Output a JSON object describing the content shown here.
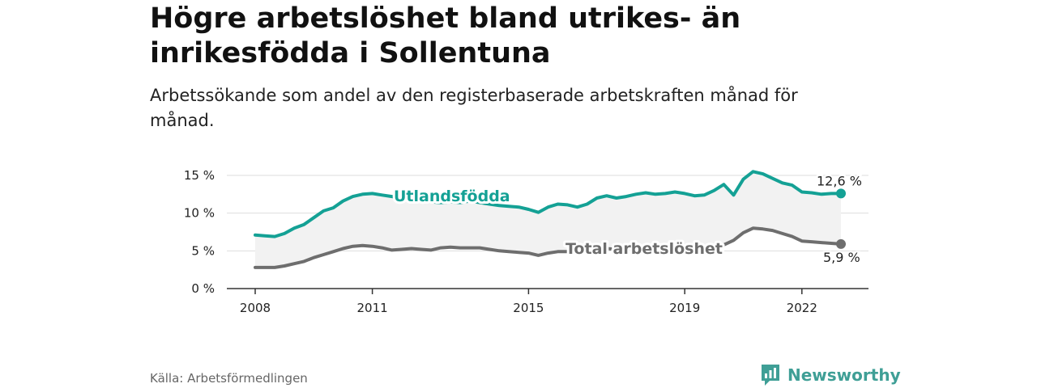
{
  "chart_data": {
    "type": "line",
    "title": "Högre arbetslöshet bland utrikes- än inrikesfödda i Sollentuna",
    "subtitle": "Arbetssökande som andel av den registerbaserade arbetskraften månad för månad.",
    "xlabel": "",
    "ylabel": "",
    "xlim": [
      2008,
      2023.1
    ],
    "ylim": [
      0,
      15.5
    ],
    "x_ticks": [
      {
        "value": 2008,
        "label": "2008"
      },
      {
        "value": 2011,
        "label": "2011"
      },
      {
        "value": 2015,
        "label": "2015"
      },
      {
        "value": 2019,
        "label": "2019"
      },
      {
        "value": 2022,
        "label": "2022"
      }
    ],
    "y_ticks": [
      {
        "value": 0,
        "label": "0 %"
      },
      {
        "value": 5,
        "label": "5 %"
      },
      {
        "value": 10,
        "label": "10 %"
      },
      {
        "value": 15,
        "label": "15 %"
      }
    ],
    "grid": "horizontal",
    "series": [
      {
        "name": "Utlandsfödda",
        "color": "#14a195",
        "end_label": "12,6 %",
        "points": [
          [
            2008.0,
            7.1
          ],
          [
            2008.25,
            7.0
          ],
          [
            2008.5,
            6.9
          ],
          [
            2008.75,
            7.3
          ],
          [
            2009.0,
            8.0
          ],
          [
            2009.25,
            8.5
          ],
          [
            2009.5,
            9.4
          ],
          [
            2009.75,
            10.3
          ],
          [
            2010.0,
            10.7
          ],
          [
            2010.25,
            11.6
          ],
          [
            2010.5,
            12.2
          ],
          [
            2010.75,
            12.5
          ],
          [
            2011.0,
            12.6
          ],
          [
            2011.25,
            12.4
          ],
          [
            2011.5,
            12.2
          ],
          [
            2011.75,
            11.9
          ],
          [
            2012.0,
            12.0
          ],
          [
            2012.25,
            11.6
          ],
          [
            2012.5,
            11.5
          ],
          [
            2012.75,
            11.4
          ],
          [
            2013.0,
            11.5
          ],
          [
            2013.25,
            11.4
          ],
          [
            2013.5,
            11.6
          ],
          [
            2013.75,
            11.4
          ],
          [
            2014.0,
            11.2
          ],
          [
            2014.25,
            11.0
          ],
          [
            2014.5,
            10.9
          ],
          [
            2014.75,
            10.8
          ],
          [
            2015.0,
            10.5
          ],
          [
            2015.25,
            10.1
          ],
          [
            2015.5,
            10.8
          ],
          [
            2015.75,
            11.2
          ],
          [
            2016.0,
            11.1
          ],
          [
            2016.25,
            10.8
          ],
          [
            2016.5,
            11.2
          ],
          [
            2016.75,
            12.0
          ],
          [
            2017.0,
            12.3
          ],
          [
            2017.25,
            12.0
          ],
          [
            2017.5,
            12.2
          ],
          [
            2017.75,
            12.5
          ],
          [
            2018.0,
            12.7
          ],
          [
            2018.25,
            12.5
          ],
          [
            2018.5,
            12.6
          ],
          [
            2018.75,
            12.8
          ],
          [
            2019.0,
            12.6
          ],
          [
            2019.25,
            12.3
          ],
          [
            2019.5,
            12.4
          ],
          [
            2019.75,
            13.0
          ],
          [
            2020.0,
            13.8
          ],
          [
            2020.25,
            12.4
          ],
          [
            2020.5,
            14.5
          ],
          [
            2020.75,
            15.5
          ],
          [
            2021.0,
            15.2
          ],
          [
            2021.25,
            14.6
          ],
          [
            2021.5,
            14.0
          ],
          [
            2021.75,
            13.7
          ],
          [
            2022.0,
            12.8
          ],
          [
            2022.25,
            12.7
          ],
          [
            2022.5,
            12.5
          ],
          [
            2022.75,
            12.6
          ],
          [
            2023.0,
            12.6
          ]
        ]
      },
      {
        "name": "Total arbetslöshet",
        "color": "#6e6e6e",
        "end_label": "5,9 %",
        "points": [
          [
            2008.0,
            2.8
          ],
          [
            2008.25,
            2.8
          ],
          [
            2008.5,
            2.8
          ],
          [
            2008.75,
            3.0
          ],
          [
            2009.0,
            3.3
          ],
          [
            2009.25,
            3.6
          ],
          [
            2009.5,
            4.1
          ],
          [
            2009.75,
            4.5
          ],
          [
            2010.0,
            4.9
          ],
          [
            2010.25,
            5.3
          ],
          [
            2010.5,
            5.6
          ],
          [
            2010.75,
            5.7
          ],
          [
            2011.0,
            5.6
          ],
          [
            2011.25,
            5.4
          ],
          [
            2011.5,
            5.1
          ],
          [
            2011.75,
            5.2
          ],
          [
            2012.0,
            5.3
          ],
          [
            2012.25,
            5.2
          ],
          [
            2012.5,
            5.1
          ],
          [
            2012.75,
            5.4
          ],
          [
            2013.0,
            5.5
          ],
          [
            2013.25,
            5.4
          ],
          [
            2013.5,
            5.4
          ],
          [
            2013.75,
            5.4
          ],
          [
            2014.0,
            5.2
          ],
          [
            2014.25,
            5.0
          ],
          [
            2014.5,
            4.9
          ],
          [
            2014.75,
            4.8
          ],
          [
            2015.0,
            4.7
          ],
          [
            2015.25,
            4.4
          ],
          [
            2015.5,
            4.7
          ],
          [
            2015.75,
            4.9
          ],
          [
            2016.0,
            4.9
          ],
          [
            2016.25,
            4.8
          ],
          [
            2016.5,
            4.9
          ],
          [
            2016.75,
            5.2
          ],
          [
            2017.0,
            5.3
          ],
          [
            2017.25,
            5.2
          ],
          [
            2017.5,
            5.2
          ],
          [
            2017.75,
            5.3
          ],
          [
            2018.0,
            5.3
          ],
          [
            2018.25,
            5.3
          ],
          [
            2018.5,
            5.3
          ],
          [
            2018.75,
            5.4
          ],
          [
            2019.0,
            5.4
          ],
          [
            2019.25,
            5.3
          ],
          [
            2019.5,
            5.3
          ],
          [
            2019.75,
            5.5
          ],
          [
            2020.0,
            5.8
          ],
          [
            2020.25,
            6.4
          ],
          [
            2020.5,
            7.4
          ],
          [
            2020.75,
            8.0
          ],
          [
            2021.0,
            7.9
          ],
          [
            2021.25,
            7.7
          ],
          [
            2021.5,
            7.3
          ],
          [
            2021.75,
            6.9
          ],
          [
            2022.0,
            6.3
          ],
          [
            2022.25,
            6.2
          ],
          [
            2022.5,
            6.1
          ],
          [
            2022.75,
            6.0
          ],
          [
            2023.0,
            5.9
          ]
        ]
      }
    ]
  },
  "source": "Källa: Arbetsförmedlingen",
  "brand": {
    "name": "Newsworthy",
    "icon": "newsworthy-logo-icon",
    "color": "#3f9f96"
  }
}
